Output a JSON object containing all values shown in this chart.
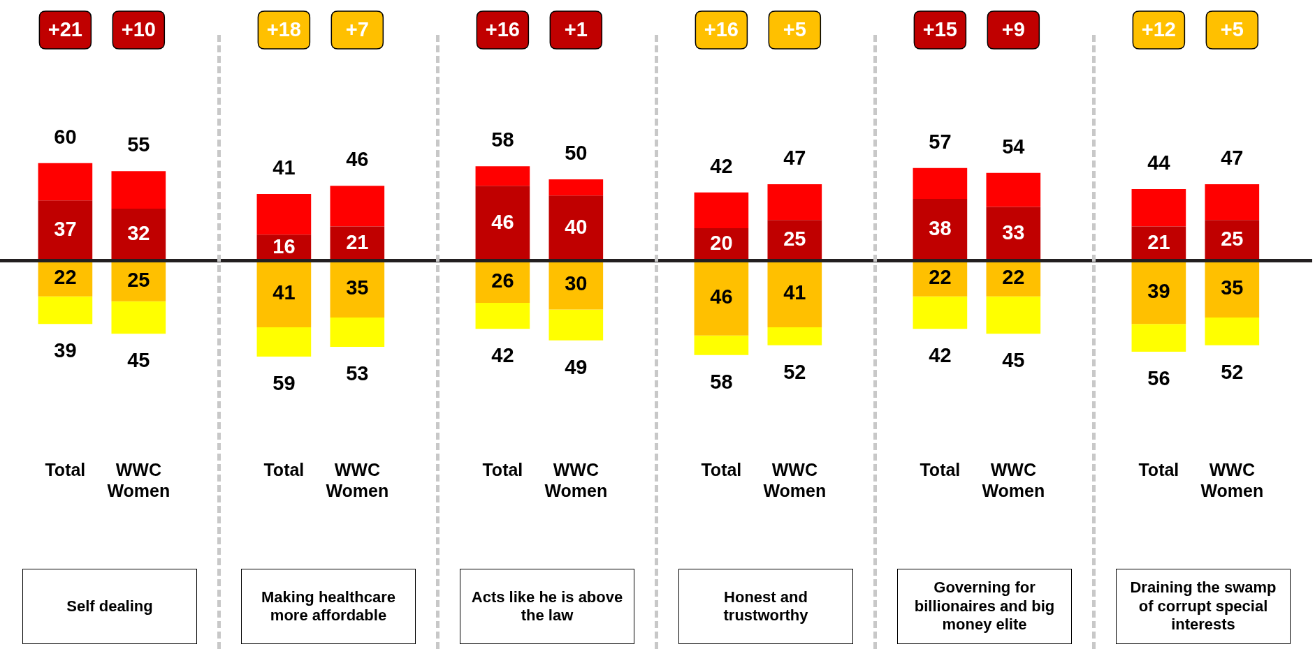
{
  "chart_data": [
    {
      "type": "bar",
      "stacked": true,
      "xlabel": "Self dealing",
      "categories": [
        "Total",
        "WWC Women"
      ],
      "series": [
        {
          "color": "#c00000",
          "values": [
            37,
            32
          ],
          "value_labels": [
            "37",
            "32"
          ]
        },
        {
          "color": "#ff0000",
          "values": [
            23,
            23
          ]
        },
        {
          "color": "#ffc000",
          "values": [
            -22,
            -25
          ]
        },
        {
          "color": "#ffff00",
          "values": [
            -17,
            -20
          ]
        }
      ],
      "annotations": [
        "+21",
        "+10",
        {
          "text": "60",
          "x": "Total",
          "y": 60
        },
        {
          "text": "55",
          "x": "WWC Women",
          "y": 55
        },
        {
          "text": "22",
          "x": "Total",
          "y": -22
        },
        {
          "text": "25",
          "x": "WWC Women",
          "y": -25
        },
        {
          "text": "39",
          "x": "Total",
          "y": -39
        },
        {
          "text": "45",
          "x": "WWC Women",
          "y": -45
        }
      ]
    },
    {
      "type": "bar",
      "stacked": true,
      "xlabel": "Making healthcare more affordable",
      "categories": [
        "Total",
        "WWC Women"
      ],
      "series": [
        {
          "color": "#c00000",
          "values": [
            16,
            21
          ],
          "value_labels": [
            "16",
            "21"
          ]
        },
        {
          "color": "#ff0000",
          "values": [
            25,
            25
          ]
        },
        {
          "color": "#ffc000",
          "values": [
            -41,
            -35
          ]
        },
        {
          "color": "#ffff00",
          "values": [
            -18,
            -18
          ]
        }
      ],
      "annotations": [
        "+18",
        "+7",
        {
          "text": "41",
          "x": "Total",
          "y": 41
        },
        {
          "text": "46",
          "x": "WWC Women",
          "y": 46
        },
        {
          "text": "41",
          "x": "Total",
          "y": -41
        },
        {
          "text": "35",
          "x": "WWC Women",
          "y": -35
        },
        {
          "text": "59",
          "x": "Total",
          "y": -59
        },
        {
          "text": "53",
          "x": "WWC Women",
          "y": -53
        }
      ]
    },
    {
      "type": "bar",
      "stacked": true,
      "xlabel": "Acts like he is above the law",
      "categories": [
        "Total",
        "WWC Women"
      ],
      "series": [
        {
          "color": "#c00000",
          "values": [
            46,
            40
          ],
          "value_labels": [
            "46",
            "40"
          ]
        },
        {
          "color": "#ff0000",
          "values": [
            12,
            10
          ]
        },
        {
          "color": "#ffc000",
          "values": [
            -26,
            -30
          ]
        },
        {
          "color": "#ffff00",
          "values": [
            -16,
            -19
          ]
        }
      ],
      "annotations": [
        "+16",
        "+1",
        {
          "text": "58",
          "x": "Total",
          "y": 58
        },
        {
          "text": "50",
          "x": "WWC Women",
          "y": 50
        },
        {
          "text": "26",
          "x": "Total",
          "y": -26
        },
        {
          "text": "30",
          "x": "WWC Women",
          "y": -30
        },
        {
          "text": "42",
          "x": "Total",
          "y": -42
        },
        {
          "text": "49",
          "x": "WWC Women",
          "y": -49
        }
      ]
    },
    {
      "type": "bar",
      "stacked": true,
      "xlabel": "Honest and trustworthy",
      "categories": [
        "Total",
        "WWC Women"
      ],
      "series": [
        {
          "color": "#c00000",
          "values": [
            20,
            25
          ],
          "value_labels": [
            "20",
            "25"
          ]
        },
        {
          "color": "#ff0000",
          "values": [
            22,
            22
          ]
        },
        {
          "color": "#ffc000",
          "values": [
            -46,
            -41
          ]
        },
        {
          "color": "#ffff00",
          "values": [
            -12,
            -11
          ]
        }
      ],
      "annotations": [
        "+16",
        "+5",
        {
          "text": "42",
          "x": "Total",
          "y": 42
        },
        {
          "text": "47",
          "x": "WWC Women",
          "y": 47
        },
        {
          "text": "46",
          "x": "Total",
          "y": -46
        },
        {
          "text": "41",
          "x": "WWC Women",
          "y": -41
        },
        {
          "text": "58",
          "x": "Total",
          "y": -58
        },
        {
          "text": "52",
          "x": "WWC Women",
          "y": -52
        }
      ]
    },
    {
      "type": "bar",
      "stacked": true,
      "xlabel": "Governing for billionaires and big money elite",
      "categories": [
        "Total",
        "WWC Women"
      ],
      "series": [
        {
          "color": "#c00000",
          "values": [
            38,
            33
          ],
          "value_labels": [
            "38",
            "33"
          ]
        },
        {
          "color": "#ff0000",
          "values": [
            19,
            21
          ]
        },
        {
          "color": "#ffc000",
          "values": [
            -22,
            -22
          ]
        },
        {
          "color": "#ffff00",
          "values": [
            -20,
            -23
          ]
        }
      ],
      "annotations": [
        "+15",
        "+9",
        {
          "text": "57",
          "x": "Total",
          "y": 57
        },
        {
          "text": "54",
          "x": "WWC Women",
          "y": 54
        },
        {
          "text": "22",
          "x": "Total",
          "y": -22
        },
        {
          "text": "22",
          "x": "WWC Women",
          "y": -22
        },
        {
          "text": "42",
          "x": "Total",
          "y": -42
        },
        {
          "text": "45",
          "x": "WWC Women",
          "y": -45
        }
      ]
    },
    {
      "type": "bar",
      "stacked": true,
      "xlabel": "Draining the swamp of corrupt special interests",
      "categories": [
        "Total",
        "WWC Women"
      ],
      "series": [
        {
          "color": "#c00000",
          "values": [
            21,
            25
          ],
          "value_labels": [
            "21",
            "25"
          ]
        },
        {
          "color": "#ff0000",
          "values": [
            23,
            22
          ]
        },
        {
          "color": "#ffc000",
          "values": [
            -39,
            -35
          ]
        },
        {
          "color": "#ffff00",
          "values": [
            -17,
            -17
          ]
        }
      ],
      "annotations": [
        "+12",
        "+5",
        {
          "text": "44",
          "x": "Total",
          "y": 44
        },
        {
          "text": "47",
          "x": "WWC Women",
          "y": 47
        },
        {
          "text": "39",
          "x": "Total",
          "y": -39
        },
        {
          "text": "35",
          "x": "WWC Women",
          "y": -35
        },
        {
          "text": "56",
          "x": "Total",
          "y": -56
        },
        {
          "text": "52",
          "x": "WWC Women",
          "y": -52
        }
      ]
    }
  ]
}
